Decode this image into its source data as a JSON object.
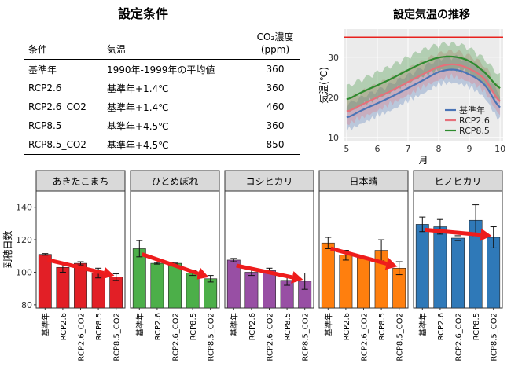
{
  "table": {
    "title": "設定条件",
    "headers": [
      "条件",
      "気温",
      "CO₂濃度",
      "(ppm)"
    ],
    "rows": [
      [
        "基準年",
        "1990年-1999年の平均値",
        "360"
      ],
      [
        "RCP2.6",
        "基準年+1.4℃",
        "360"
      ],
      [
        "RCP2.6_CO2",
        "基準年+1.4℃",
        "460"
      ],
      [
        "RCP8.5",
        "基準年+4.5℃",
        "360"
      ],
      [
        "RCP8.5_CO2",
        "基準年+4.5℃",
        "850"
      ]
    ]
  },
  "chart_data": [
    {
      "type": "line",
      "title": "設定気温の推移",
      "xlabel": "月",
      "ylabel": "気温(℃)",
      "xlim": [
        4.9,
        10.1
      ],
      "ylim": [
        9,
        37
      ],
      "xticks": [
        5,
        6,
        7,
        8,
        9,
        10
      ],
      "yticks": [
        10,
        20,
        30
      ],
      "hline": {
        "y": 35,
        "color": "#e8211d"
      },
      "x": [
        5,
        5.5,
        6,
        6.5,
        7,
        7.5,
        8,
        8.5,
        9,
        9.5,
        10
      ],
      "series": [
        {
          "name": "基準年",
          "color": "#4a74b6",
          "values": [
            15,
            16.8,
            18.5,
            20.3,
            22.3,
            24.3,
            26.3,
            26.9,
            25.7,
            23.1,
            17.5
          ]
        },
        {
          "name": "RCP2.6",
          "color": "#e6707a",
          "values": [
            16.5,
            18.2,
            20,
            21.8,
            23.8,
            25.8,
            27.6,
            28.2,
            27.1,
            24.5,
            19
          ]
        },
        {
          "name": "RCP8.5",
          "color": "#2e8b2e",
          "values": [
            19.5,
            21.3,
            23,
            24.8,
            26.8,
            28.6,
            29.9,
            30.1,
            29,
            26.2,
            22.3
          ]
        }
      ],
      "legend": "bottom-right",
      "bands": true
    },
    {
      "type": "bar",
      "ylabel": "到穂日数",
      "ylim": [
        78,
        150
      ],
      "yticks": [
        80,
        100,
        120,
        140
      ],
      "categories": [
        "基準年",
        "RCP2.6",
        "RCP2.6_CO2",
        "RCP8.5",
        "RCP8.5_CO2"
      ],
      "panels": [
        {
          "name": "あきたこまち",
          "color": "#e21f26",
          "values": [
            111,
            103,
            105.5,
            99.5,
            97
          ],
          "errors": [
            0.5,
            3,
            1,
            3,
            2
          ]
        },
        {
          "name": "ひとめぼれ",
          "color": "#4caf49",
          "values": [
            114.5,
            105.5,
            105.5,
            99.5,
            96
          ],
          "errors": [
            5,
            0.5,
            0.5,
            1.5,
            2
          ]
        },
        {
          "name": "コシヒカリ",
          "color": "#984fa4",
          "values": [
            107.5,
            100,
            101,
            95,
            94.5
          ],
          "errors": [
            1,
            2,
            1.5,
            3,
            5
          ]
        },
        {
          "name": "日本晴",
          "color": "#ff7f0e",
          "values": [
            118,
            110.5,
            109,
            113.5,
            102.5
          ],
          "errors": [
            3.5,
            3,
            0.5,
            6.5,
            4
          ]
        },
        {
          "name": "ヒノヒカリ",
          "color": "#2f79b8",
          "values": [
            129.5,
            128,
            121,
            132,
            121.5
          ],
          "errors": [
            4.5,
            4.5,
            1.5,
            9.5,
            6.5
          ]
        }
      ],
      "trend_arrow_color": "#ee1c1c"
    }
  ]
}
